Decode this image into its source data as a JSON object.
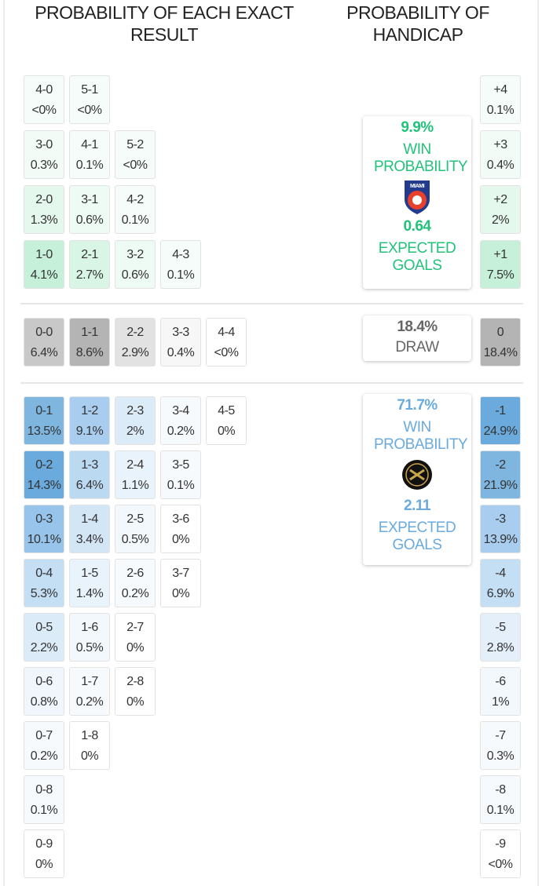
{
  "header": {
    "exact_result": "PROBABILITY OF EACH EXACT RESULT",
    "handicap": "PROBABILITY OF HANDICAP"
  },
  "home": {
    "win_probability": "9.9%",
    "win_label": "WIN PROBABILITY",
    "logo_text": "MIAMI",
    "expected_goals": "0.64",
    "expected_goals_label": "EXPECTED GOALS"
  },
  "draw": {
    "probability": "18.4%",
    "label": "DRAW"
  },
  "away": {
    "win_probability": "71.7%",
    "win_label": "WIN PROBABILITY",
    "expected_goals": "2.11",
    "expected_goals_label": "EXPECTED GOALS"
  },
  "exact_results": {
    "home_wins": [
      [
        {
          "score": "4-0",
          "probability": "<0%",
          "color": "#f6fcf9"
        },
        {
          "score": "5-1",
          "probability": "<0%",
          "color": "#f6fcf9"
        }
      ],
      [
        {
          "score": "3-0",
          "probability": "0.3%",
          "color": "#f3fbf7"
        },
        {
          "score": "4-1",
          "probability": "0.1%",
          "color": "#f6fcf9"
        },
        {
          "score": "5-2",
          "probability": "<0%",
          "color": "#f6fcf9"
        }
      ],
      [
        {
          "score": "2-0",
          "probability": "1.3%",
          "color": "#e4f8ee"
        },
        {
          "score": "3-1",
          "probability": "0.6%",
          "color": "#eefaf4"
        },
        {
          "score": "4-2",
          "probability": "0.1%",
          "color": "#f6fcf9"
        }
      ],
      [
        {
          "score": "1-0",
          "probability": "4.1%",
          "color": "#c6f0da"
        },
        {
          "score": "2-1",
          "probability": "2.7%",
          "color": "#d8f5e6"
        },
        {
          "score": "3-2",
          "probability": "0.6%",
          "color": "#eefaf4"
        },
        {
          "score": "4-3",
          "probability": "0.1%",
          "color": "#f6fcf9"
        }
      ]
    ],
    "draws": [
      {
        "score": "0-0",
        "probability": "6.4%",
        "color": "#c8c8c8"
      },
      {
        "score": "1-1",
        "probability": "8.6%",
        "color": "#b4b4b4"
      },
      {
        "score": "2-2",
        "probability": "2.9%",
        "color": "#e2e2e2"
      },
      {
        "score": "3-3",
        "probability": "0.4%",
        "color": "#f7f7f7"
      },
      {
        "score": "4-4",
        "probability": "<0%",
        "color": "#ffffff"
      }
    ],
    "away_wins": [
      [
        {
          "score": "0-1",
          "probability": "13.5%",
          "color": "#7fb6e0"
        },
        {
          "score": "1-2",
          "probability": "9.1%",
          "color": "#a8cdee"
        },
        {
          "score": "2-3",
          "probability": "2%",
          "color": "#dcebf8"
        },
        {
          "score": "3-4",
          "probability": "0.2%",
          "color": "#f7fafd"
        },
        {
          "score": "4-5",
          "probability": "0%",
          "color": "#ffffff"
        }
      ],
      [
        {
          "score": "0-2",
          "probability": "14.3%",
          "color": "#6aaadc"
        },
        {
          "score": "1-3",
          "probability": "6.4%",
          "color": "#bcd9f2"
        },
        {
          "score": "2-4",
          "probability": "1.1%",
          "color": "#e9f3fb"
        },
        {
          "score": "3-5",
          "probability": "0.1%",
          "color": "#f7fafd"
        }
      ],
      [
        {
          "score": "0-3",
          "probability": "10.1%",
          "color": "#96c4ea"
        },
        {
          "score": "1-4",
          "probability": "3.4%",
          "color": "#d3e6f6"
        },
        {
          "score": "2-5",
          "probability": "0.5%",
          "color": "#f3f8fc"
        },
        {
          "score": "3-6",
          "probability": "0%",
          "color": "#ffffff"
        }
      ],
      [
        {
          "score": "0-4",
          "probability": "5.3%",
          "color": "#c4def4"
        },
        {
          "score": "1-5",
          "probability": "1.4%",
          "color": "#e9f3fb"
        },
        {
          "score": "2-6",
          "probability": "0.2%",
          "color": "#f7fafd"
        },
        {
          "score": "3-7",
          "probability": "0%",
          "color": "#ffffff"
        }
      ],
      [
        {
          "score": "0-5",
          "probability": "2.2%",
          "color": "#dcebf8"
        },
        {
          "score": "1-6",
          "probability": "0.5%",
          "color": "#f3f8fc"
        },
        {
          "score": "2-7",
          "probability": "0%",
          "color": "#ffffff"
        }
      ],
      [
        {
          "score": "0-6",
          "probability": "0.8%",
          "color": "#f0f6fc"
        },
        {
          "score": "1-7",
          "probability": "0.2%",
          "color": "#f7fafd"
        },
        {
          "score": "2-8",
          "probability": "0%",
          "color": "#ffffff"
        }
      ],
      [
        {
          "score": "0-7",
          "probability": "0.2%",
          "color": "#f7fafd"
        },
        {
          "score": "1-8",
          "probability": "0%",
          "color": "#ffffff"
        }
      ],
      [
        {
          "score": "0-8",
          "probability": "0.1%",
          "color": "#f7fafd"
        }
      ],
      [
        {
          "score": "0-9",
          "probability": "0%",
          "color": "#ffffff"
        }
      ]
    ]
  },
  "handicap": {
    "home": [
      {
        "line": "+4",
        "probability": "0.1%",
        "color": "#f6fcf9"
      },
      {
        "line": "+3",
        "probability": "0.4%",
        "color": "#f3fbf7"
      },
      {
        "line": "+2",
        "probability": "2%",
        "color": "#e4f8ee"
      },
      {
        "line": "+1",
        "probability": "7.5%",
        "color": "#c6f0da"
      }
    ],
    "draw": [
      {
        "line": "0",
        "probability": "18.4%",
        "color": "#b4b4b4"
      }
    ],
    "away": [
      {
        "line": "-1",
        "probability": "24.9%",
        "color": "#6aaadc"
      },
      {
        "line": "-2",
        "probability": "21.9%",
        "color": "#7fb6e0"
      },
      {
        "line": "-3",
        "probability": "13.9%",
        "color": "#a8cdee"
      },
      {
        "line": "-4",
        "probability": "6.9%",
        "color": "#c4def4"
      },
      {
        "line": "-5",
        "probability": "2.8%",
        "color": "#e4effa"
      },
      {
        "line": "-6",
        "probability": "1%",
        "color": "#f3f8fc"
      },
      {
        "line": "-7",
        "probability": "0.3%",
        "color": "#f7fafd"
      },
      {
        "line": "-8",
        "probability": "0.1%",
        "color": "#f7fafd"
      },
      {
        "line": "-9",
        "probability": "<0%",
        "color": "#ffffff"
      }
    ]
  }
}
